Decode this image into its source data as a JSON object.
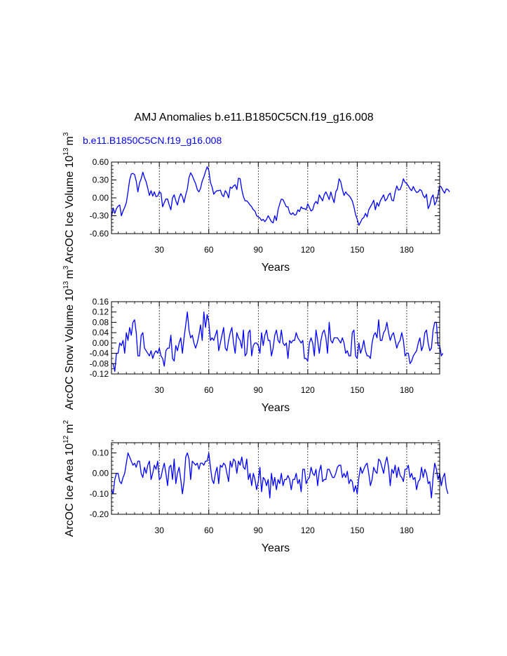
{
  "title": "AMJ Anomalies b.e11.B1850C5CN.f19_g16.008",
  "subtitle": "b.e11.B1850C5CN.f19_g16.008",
  "colors": {
    "series": "#0000ff",
    "axis": "#000000",
    "grid": "#000000"
  },
  "chart_data": [
    {
      "type": "line",
      "ylabel_main": "ArcOC Ice Volume 10",
      "ylabel_exp": "13",
      "ylabel_unit": "m",
      "ylabel_unit_exp": "3",
      "xlabel": "Years",
      "xlim": [
        1,
        200
      ],
      "ylim": [
        -0.6,
        0.6
      ],
      "xticks": [
        30,
        60,
        90,
        120,
        150,
        180
      ],
      "xtick_labels": [
        "30",
        "60",
        "90",
        "120",
        "150",
        "180"
      ],
      "yticks": [
        -0.6,
        -0.3,
        0.0,
        0.3,
        0.6
      ],
      "ytick_labels": [
        "-0.60",
        "-0.30",
        "0.00",
        "0.30",
        "0.60"
      ],
      "x_minor_step": 5,
      "y_minor_step": 0.06,
      "grid": "vertical dashed at major x ticks",
      "series": [
        {
          "name": "b.e11.B1850C5CN.f19_g16.008",
          "x_start": 1,
          "values": [
            -0.32,
            -0.17,
            -0.26,
            -0.18,
            -0.14,
            -0.12,
            -0.3,
            -0.22,
            -0.16,
            -0.08,
            0.1,
            0.3,
            0.4,
            0.41,
            0.39,
            0.28,
            0.1,
            0.25,
            0.32,
            0.43,
            0.34,
            0.27,
            0.16,
            0.04,
            0.12,
            0.03,
            0.1,
            0.02,
            0.03,
            0.1,
            0.08,
            -0.15,
            -0.08,
            -0.02,
            -0.02,
            -0.12,
            -0.2,
            0.0,
            0.05,
            -0.05,
            -0.12,
            0.0,
            0.07,
            0.02,
            -0.08,
            0.05,
            0.15,
            0.34,
            0.42,
            0.37,
            0.3,
            0.24,
            0.14,
            0.1,
            0.16,
            0.28,
            0.35,
            0.44,
            0.52,
            0.46,
            0.26,
            0.18,
            0.06,
            0.1,
            0.12,
            0.12,
            0.13,
            0.05,
            0.02,
            0.12,
            0.08,
            0.0,
            0.18,
            0.16,
            0.2,
            0.22,
            0.14,
            0.33,
            0.32,
            0.14,
            0.02,
            -0.05,
            -0.05,
            -0.08,
            -0.12,
            -0.15,
            -0.2,
            -0.22,
            -0.3,
            -0.32,
            -0.34,
            -0.38,
            -0.36,
            -0.4,
            -0.36,
            -0.3,
            -0.35,
            -0.4,
            -0.42,
            -0.3,
            -0.38,
            -0.2,
            -0.1,
            -0.02,
            -0.03,
            -0.09,
            -0.15,
            -0.15,
            -0.25,
            -0.28,
            -0.25,
            -0.29,
            -0.28,
            -0.2,
            -0.23,
            -0.15,
            -0.18,
            -0.18,
            -0.2,
            -0.1,
            -0.16,
            -0.22,
            -0.2,
            -0.1,
            -0.06,
            -0.1,
            0.05,
            0.0,
            -0.05,
            0.05,
            0.1,
            0.04,
            -0.03,
            0.1,
            0.0,
            -0.08,
            0.1,
            0.15,
            0.32,
            0.27,
            0.14,
            0.04,
            0.1,
            0.06,
            0.04,
            0.0,
            -0.05,
            -0.15,
            -0.28,
            -0.36,
            -0.46,
            -0.41,
            -0.35,
            -0.33,
            -0.26,
            -0.32,
            -0.2,
            -0.15,
            -0.1,
            -0.04,
            -0.2,
            -0.08,
            -0.14,
            -0.05,
            0.0,
            0.05,
            -0.05,
            -0.02,
            0.05,
            0.08,
            -0.04,
            -0.05,
            0.1,
            0.2,
            0.13,
            0.14,
            0.21,
            0.32,
            0.26,
            0.24,
            0.2,
            0.15,
            0.12,
            0.19,
            0.13,
            0.09,
            0.1,
            0.14,
            0.12,
            0.04,
            0.0,
            0.06,
            -0.18,
            -0.12,
            0.0,
            0.05,
            -0.12,
            -0.06,
            0.05,
            0.2,
            0.18,
            0.12,
            0.08,
            0.15,
            0.14,
            0.1
          ]
        }
      ]
    },
    {
      "type": "line",
      "ylabel_main": "ArcOC Snow Volume 10",
      "ylabel_exp": "13",
      "ylabel_unit": "m",
      "ylabel_unit_exp": "3",
      "xlabel": "Years",
      "xlim": [
        1,
        200
      ],
      "ylim": [
        -0.12,
        0.16
      ],
      "xticks": [
        30,
        60,
        90,
        120,
        150,
        180
      ],
      "xtick_labels": [
        "30",
        "60",
        "90",
        "120",
        "150",
        "180"
      ],
      "yticks": [
        -0.12,
        -0.08,
        -0.04,
        0.0,
        0.04,
        0.08,
        0.12,
        0.16
      ],
      "ytick_labels": [
        "-0.12",
        "-0.08",
        "-0.04",
        "0.00",
        "0.04",
        "0.08",
        "0.12",
        "0.16"
      ],
      "x_minor_step": 5,
      "y_minor_step": 0.02,
      "grid": "vertical dashed at major x ticks",
      "series": [
        {
          "name": "b.e11.B1850C5CN.f19_g16.008",
          "x_start": 1,
          "values": [
            -0.08,
            -0.08,
            -0.11,
            -0.04,
            -0.04,
            0.0,
            -0.01,
            0.01,
            -0.04,
            0.04,
            0.01,
            0.06,
            0.03,
            0.08,
            0.09,
            0.04,
            -0.05,
            -0.05,
            0.03,
            0.04,
            -0.02,
            -0.03,
            -0.04,
            -0.05,
            -0.03,
            -0.06,
            -0.04,
            -0.03,
            -0.04,
            -0.02,
            -0.05,
            -0.06,
            -0.09,
            -0.03,
            -0.02,
            -0.02,
            0.03,
            -0.06,
            -0.07,
            -0.01,
            -0.03,
            0.0,
            0.02,
            -0.04,
            0.02,
            0.07,
            0.12,
            0.05,
            0.02,
            0.03,
            0.0,
            -0.02,
            0.0,
            0.03,
            0.07,
            0.01,
            0.12,
            0.06,
            0.11,
            0.08,
            0.01,
            0.02,
            0.01,
            0.03,
            0.05,
            -0.03,
            0.0,
            0.03,
            0.06,
            -0.02,
            -0.03,
            0.01,
            0.04,
            0.06,
            0.0,
            -0.04,
            0.04,
            0.02,
            0.01,
            -0.02,
            0.05,
            -0.05,
            -0.04,
            0.04,
            0.05,
            -0.05,
            -0.01,
            0.0,
            0.0,
            -0.01,
            -0.04,
            0.04,
            -0.01,
            0.03,
            0.05,
            0.01,
            0.01,
            -0.05,
            -0.02,
            0.03,
            0.05,
            0.01,
            0.0,
            0.05,
            0.0,
            -0.01,
            0.0,
            -0.06,
            0.01,
            0.0,
            0.01,
            0.01,
            0.04,
            0.02,
            0.01,
            0.0,
            0.01,
            -0.06,
            -0.06,
            -0.07,
            0.0,
            0.02,
            0.0,
            -0.05,
            0.05,
            0.01,
            -0.04,
            0.01,
            0.04,
            0.05,
            0.02,
            -0.04,
            0.08,
            0.01,
            0.0,
            0.02,
            0.02,
            0.02,
            0.01,
            0.0,
            0.02,
            0.0,
            -0.04,
            -0.03,
            -0.05,
            -0.05,
            0.04,
            0.05,
            -0.05,
            -0.06,
            0.0,
            -0.04,
            -0.02,
            0.01,
            -0.03,
            -0.05,
            -0.05,
            -0.06,
            0.0,
            0.03,
            0.04,
            0.02,
            0.09,
            0.01,
            0.01,
            0.04,
            0.05,
            0.08,
            0.04,
            0.01,
            0.03,
            0.04,
            0.01,
            -0.02,
            0.0,
            0.01,
            0.04,
            0.01,
            -0.05,
            -0.04,
            -0.04,
            -0.08,
            -0.07,
            -0.05,
            -0.04,
            -0.03,
            0.0,
            0.02,
            -0.03,
            -0.01,
            0.04,
            0.05,
            0.0,
            -0.03,
            -0.02,
            0.05,
            0.08,
            0.08,
            -0.01,
            -0.01,
            -0.05,
            -0.04
          ]
        }
      ]
    },
    {
      "type": "line",
      "ylabel_main": "ArcOC Ice Area 10",
      "ylabel_exp": "12",
      "ylabel_unit": "m",
      "ylabel_unit_exp": "2",
      "xlabel": "Years",
      "xlim": [
        1,
        200
      ],
      "ylim": [
        -0.2,
        0.15
      ],
      "xticks": [
        30,
        60,
        90,
        120,
        150,
        180
      ],
      "xtick_labels": [
        "30",
        "60",
        "90",
        "120",
        "150",
        "180"
      ],
      "yticks": [
        -0.2,
        -0.1,
        0.0,
        0.1
      ],
      "ytick_labels": [
        "-0.20",
        "-0.10",
        "0.00",
        "0.10"
      ],
      "x_minor_step": 5,
      "y_minor_step": 0.02,
      "grid": "vertical dashed at major x ticks",
      "series": [
        {
          "name": "b.e11.B1850C5CN.f19_g16.008",
          "x_start": 1,
          "values": [
            -0.08,
            -0.1,
            -0.03,
            0.0,
            0.0,
            -0.04,
            -0.05,
            -0.02,
            0.0,
            0.05,
            0.1,
            0.08,
            0.06,
            0.04,
            0.05,
            0.03,
            0.06,
            0.06,
            0.0,
            -0.02,
            0.03,
            0.0,
            0.04,
            0.06,
            -0.03,
            0.0,
            0.04,
            0.02,
            0.06,
            -0.03,
            -0.02,
            0.02,
            0.05,
            0.0,
            -0.06,
            0.03,
            0.04,
            -0.03,
            0.07,
            -0.05,
            0.0,
            0.03,
            -0.03,
            -0.1,
            -0.04,
            0.08,
            0.1,
            0.07,
            -0.03,
            0.06,
            0.05,
            0.04,
            0.05,
            0.02,
            0.05,
            0.05,
            0.04,
            0.06,
            0.06,
            0.1,
            0.03,
            -0.03,
            -0.05,
            0.0,
            0.03,
            -0.05,
            0.04,
            0.03,
            0.05,
            0.04,
            0.0,
            -0.04,
            0.06,
            0.03,
            0.07,
            0.06,
            0.0,
            0.06,
            0.04,
            0.08,
            0.03,
            0.02,
            0.07,
            -0.03,
            0.0,
            -0.06,
            0.0,
            -0.03,
            -0.08,
            -0.04,
            0.03,
            -0.09,
            -0.02,
            -0.03,
            -0.06,
            -0.03,
            -0.12,
            0.0,
            -0.06,
            -0.02,
            -0.08,
            -0.03,
            -0.05,
            0.0,
            -0.06,
            -0.03,
            -0.03,
            -0.01,
            -0.03,
            -0.08,
            -0.03,
            -0.03,
            0.0,
            -0.05,
            -0.03,
            -0.09,
            0.02,
            0.02,
            -0.05,
            -0.03,
            -0.02,
            0.03,
            0.0,
            -0.01,
            0.02,
            -0.06,
            0.01,
            0.04,
            -0.04,
            -0.03,
            -0.03,
            0.02,
            0.02,
            0.0,
            -0.02,
            -0.02,
            0.0,
            0.03,
            0.04,
            0.04,
            -0.02,
            0.0,
            -0.02,
            0.01,
            -0.05,
            -0.03,
            -0.04,
            -0.09,
            -0.06,
            -0.1,
            -0.02,
            0.03,
            0.0,
            0.02,
            0.04,
            0.05,
            0.0,
            -0.06,
            -0.03,
            0.03,
            0.01,
            0.0,
            0.07,
            0.06,
            0.03,
            0.0,
            0.05,
            0.08,
            0.03,
            -0.06,
            0.02,
            0.0,
            0.04,
            -0.02,
            0.03,
            -0.01,
            -0.02,
            -0.04,
            0.02,
            0.02,
            0.04,
            -0.02,
            0.0,
            -0.03,
            -0.02,
            -0.08,
            -0.04,
            -0.03,
            0.03,
            -0.02,
            0.02,
            0.0,
            -0.05,
            -0.04,
            -0.12,
            -0.02,
            0.05,
            0.02,
            -0.03,
            0.0,
            -0.06,
            -0.02,
            0.0,
            -0.07,
            -0.1
          ]
        }
      ]
    }
  ]
}
